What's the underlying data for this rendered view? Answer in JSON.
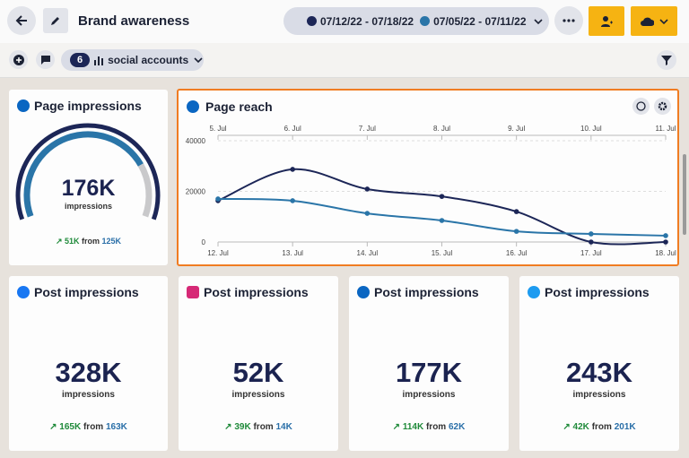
{
  "header": {
    "title": "Brand awareness"
  },
  "toolbar": {
    "account_count": "6",
    "accounts_label": "social accounts"
  },
  "cards": [
    {
      "title": "Page impressions",
      "value": "176K",
      "unit": "impressions",
      "change": "51K",
      "from_text": "from",
      "previous": "125K"
    },
    {
      "title": "Post impressions",
      "value": "328K",
      "unit": "impressions",
      "change": "165K",
      "from_text": "from",
      "previous": "163K"
    },
    {
      "title": "Post impressions",
      "value": "52K",
      "unit": "impressions",
      "change": "39K",
      "from_text": "from",
      "previous": "14K"
    },
    {
      "title": "Post impressions",
      "value": "177K",
      "unit": "impressions",
      "change": "114K",
      "from_text": "from",
      "previous": "62K"
    },
    {
      "title": "Post impressions",
      "value": "243K",
      "unit": "impressions",
      "change": "42K",
      "from_text": "from",
      "previous": "201K"
    }
  ],
  "page_reach": {
    "title": "Page reach",
    "chart_data": {
      "type": "line",
      "x": [
        "12. Jul",
        "13. Jul",
        "14. Jul",
        "15. Jul",
        "16. Jul",
        "17. Jul",
        "18. Jul"
      ],
      "x_top": [
        "5. Jul",
        "6. Jul",
        "7. Jul",
        "8. Jul",
        "9. Jul",
        "10. Jul",
        "11. Jul"
      ],
      "ylim": [
        0,
        40000
      ],
      "yticks": [
        0,
        20000,
        40000
      ],
      "grid": true,
      "series": [
        {
          "name": "07/12/22 - 07/18/22",
          "color": "#1c2657",
          "values": [
            16300,
            28700,
            20900,
            18000,
            12000,
            0,
            0
          ]
        },
        {
          "name": "07/05/22 - 07/11/22",
          "color": "#2a75a8",
          "values": [
            17000,
            16300,
            11300,
            8500,
            4200,
            3200,
            2500
          ]
        }
      ]
    }
  }
}
